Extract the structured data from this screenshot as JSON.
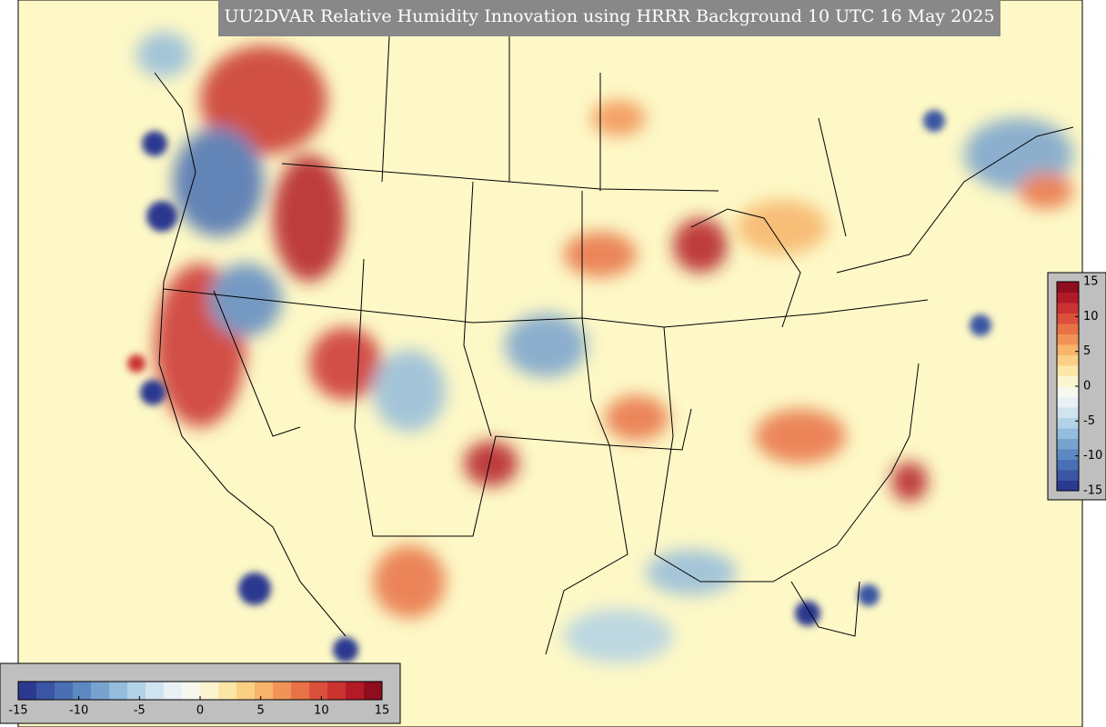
{
  "title": "UU2DVAR Relative Humidity Innovation using HRRR Background 10 UTC 16 May 2025",
  "colormap": [
    "#2b3990",
    "#3a55a3",
    "#4a6fb4",
    "#5d89c2",
    "#78a3cf",
    "#94bcdc",
    "#b2d2e6",
    "#cfe4ef",
    "#e8f2f4",
    "#f7f8ee",
    "#fdf5cf",
    "#fde7a8",
    "#fbd085",
    "#f7b46a",
    "#f19356",
    "#e87246",
    "#db503a",
    "#cb3230",
    "#b31a28",
    "#8f0d1e"
  ],
  "colorbar_horizontal": {
    "lim": [
      -15,
      15
    ],
    "ticks": [
      -15,
      -10,
      -5,
      0,
      5,
      10,
      15
    ]
  },
  "colorbar_vertical": {
    "lim": [
      -15,
      15
    ],
    "ticks": [
      15,
      10,
      5,
      0,
      -5,
      -10,
      -15
    ]
  }
}
